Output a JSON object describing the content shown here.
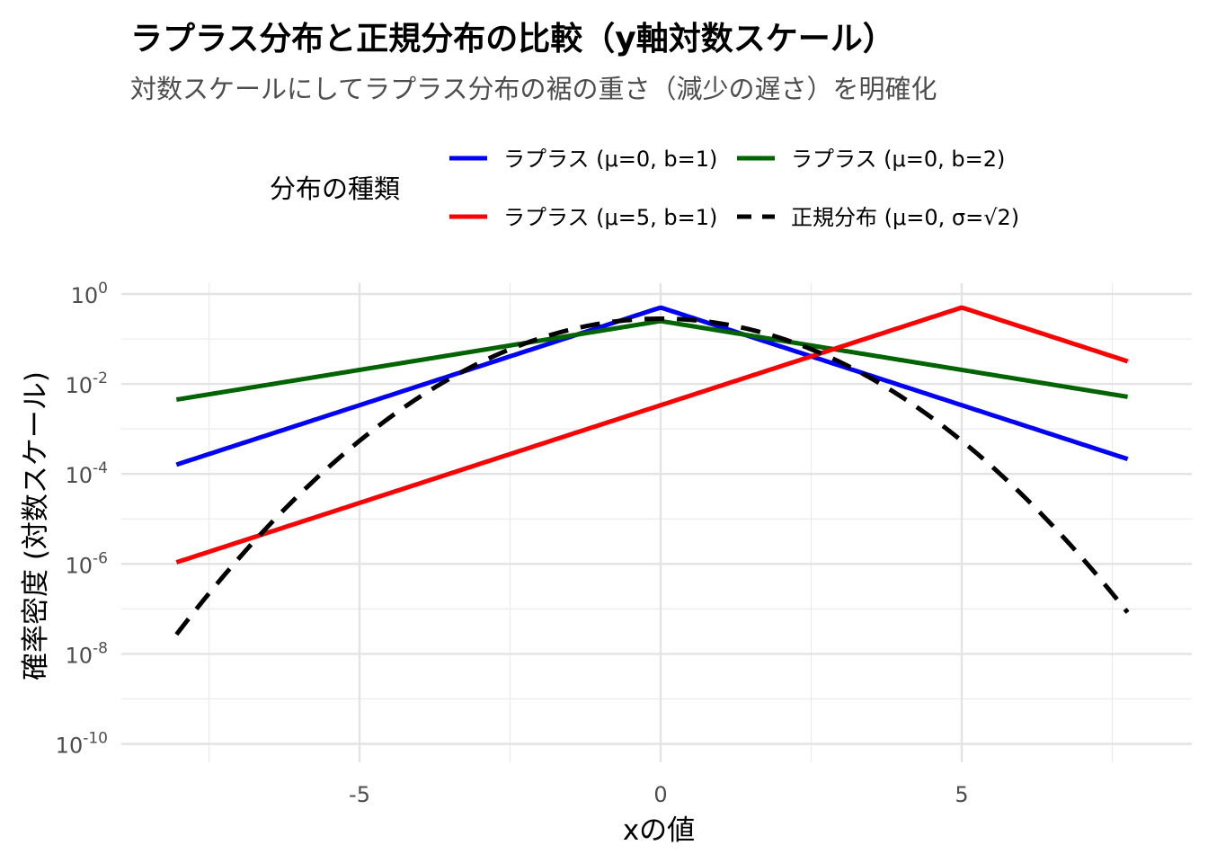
{
  "chart_data": {
    "type": "line",
    "title": "ラプラス分布と正規分布の比較（y軸対数スケール）",
    "subtitle": "対数スケールにしてラプラス分布の裾の重さ（減少の遅さ）を明確化",
    "xlabel": "xの値",
    "ylabel": "確率密度 (対数スケール)",
    "y_scale": "log10",
    "xlim": [
      -8,
      8
    ],
    "ylim": [
      1e-10,
      1
    ],
    "x_ticks": [
      -5,
      0,
      5
    ],
    "x_tick_labels": [
      "-5",
      "0",
      "5"
    ],
    "y_ticks": [
      0,
      -2,
      -4,
      -6,
      -8,
      -10
    ],
    "y_tick_labels": [
      {
        "base": "10",
        "exp": "0"
      },
      {
        "base": "10",
        "exp": "-2"
      },
      {
        "base": "10",
        "exp": "-4"
      },
      {
        "base": "10",
        "exp": "-6"
      },
      {
        "base": "10",
        "exp": "-8"
      },
      {
        "base": "10",
        "exp": "-10"
      }
    ],
    "grid": true,
    "legend": {
      "title": "分布の種類",
      "position": "top"
    },
    "series": [
      {
        "name": "ラプラス (μ=0, b=1)",
        "color": "#0000ff",
        "dash": "solid",
        "kind": "laplace",
        "mu": 0,
        "b": 1,
        "x": [
          -8,
          0,
          8
        ],
        "y": [
          0.000168,
          0.5,
          0.000168
        ]
      },
      {
        "name": "ラプラス (μ=0, b=2)",
        "color": "#006400",
        "dash": "solid",
        "kind": "laplace",
        "mu": 0,
        "b": 2,
        "x": [
          -8,
          0,
          8
        ],
        "y": [
          0.00458,
          0.25,
          0.00458
        ]
      },
      {
        "name": "ラプラス (μ=5, b=1)",
        "color": "#ff0000",
        "dash": "solid",
        "kind": "laplace",
        "mu": 5,
        "b": 1,
        "x": [
          -8,
          5,
          8
        ],
        "y": [
          1.13e-06,
          0.5,
          0.0249
        ]
      },
      {
        "name": "正規分布 (μ=0, σ=√2)",
        "color": "#000000",
        "dash": "dashed",
        "kind": "normal",
        "mu": 0,
        "sigma": 1.4142,
        "x": [
          -8,
          -4,
          0,
          4,
          8
        ],
        "y": [
          3.09e-08,
          0.0052,
          0.2821,
          0.0052,
          3.09e-08
        ]
      }
    ]
  }
}
